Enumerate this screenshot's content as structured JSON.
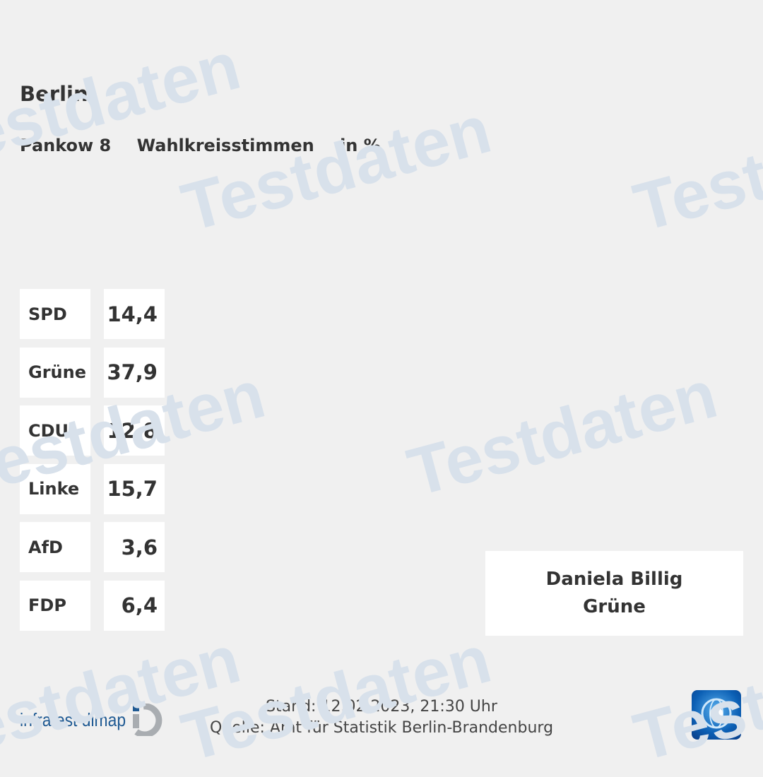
{
  "header": {
    "region": "Berlin",
    "constituency": "Pankow 8",
    "vote_type": "Wahlkreisstimmen",
    "unit": "in %"
  },
  "results": [
    {
      "party": "SPD",
      "value": "14,4"
    },
    {
      "party": "Grüne",
      "value": "37,9"
    },
    {
      "party": "CDU",
      "value": "12,8"
    },
    {
      "party": "Linke",
      "value": "15,7"
    },
    {
      "party": "AfD",
      "value": "3,6"
    },
    {
      "party": "FDP",
      "value": "6,4"
    }
  ],
  "winner": {
    "name": "Daniela Billig",
    "party": "Grüne"
  },
  "footer": {
    "stand": "Stand: 12.02.2023, 21:30 Uhr",
    "source": "Quelle: Amt für Statistik Berlin-Brandenburg"
  },
  "logos": {
    "pollster": "infratest dimap",
    "broadcaster": "tagesschau"
  },
  "watermark": "Testdaten",
  "colors": {
    "background": "#f0f0f0",
    "watermark": "#d8e1eb",
    "pollster_blue": "#1f5a93"
  }
}
